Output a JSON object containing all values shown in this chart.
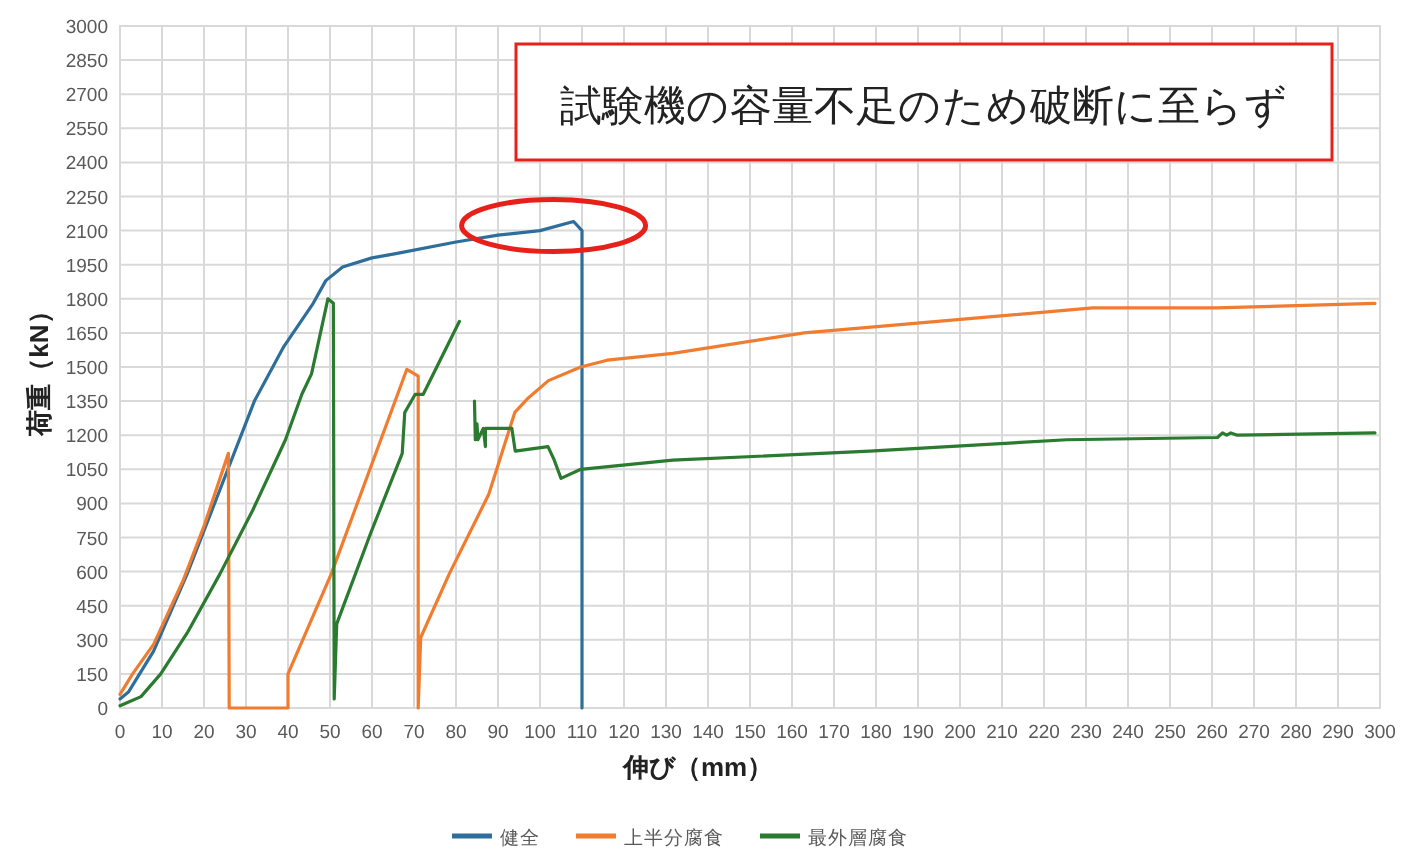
{
  "chart_data": {
    "type": "line",
    "xlabel": "伸び（mm）",
    "ylabel": "荷重（kN）",
    "xlim": [
      0,
      300
    ],
    "xticks": [
      0,
      10,
      20,
      30,
      40,
      50,
      60,
      70,
      80,
      90,
      100,
      110,
      120,
      130,
      140,
      150,
      160,
      170,
      180,
      190,
      200,
      210,
      220,
      230,
      240,
      250,
      260,
      270,
      280,
      290,
      300
    ],
    "ylim": [
      0,
      3000
    ],
    "yticks": [
      0,
      150,
      300,
      450,
      600,
      750,
      900,
      1050,
      1200,
      1350,
      1500,
      1650,
      1800,
      1950,
      2100,
      2250,
      2400,
      2550,
      2700,
      2850,
      3000
    ],
    "grid": true,
    "legend": "bottom",
    "marker": "none",
    "line_style": "solid",
    "annotations": [
      "試験機の容量不足のため破断に至らず"
    ],
    "series": [
      {
        "name": "健全",
        "color": "#2e6e9a",
        "x": [
          0,
          2,
          8,
          16,
          24,
          32,
          39,
          46,
          49,
          53,
          60,
          66,
          80,
          90,
          100,
          108,
          110,
          110
        ],
        "values": [
          40,
          70,
          250,
          590,
          970,
          1350,
          1590,
          1780,
          1880,
          1940,
          1980,
          2000,
          2050,
          2080,
          2100,
          2140,
          2100,
          0
        ]
      },
      {
        "name": "上半分腐食",
        "color": "#f07c30",
        "x": [
          0,
          3,
          8,
          15,
          20,
          25.8,
          26,
          40,
          40,
          50.3,
          68.3,
          71,
          71,
          71.6,
          78.4,
          87.8,
          94,
          97,
          102,
          109.7,
          116,
          131.6,
          162.9,
          187.8,
          231.6,
          261,
          298.8
        ],
        "values": [
          60,
          150,
          280,
          560,
          800,
          1120,
          0,
          0,
          150,
          590,
          1490,
          1460,
          0,
          310,
          590,
          940,
          1300,
          1360,
          1440,
          1500,
          1530,
          1560,
          1650,
          1690,
          1760,
          1760,
          1780
        ]
      },
      {
        "name": "最外層腐食",
        "color": "#2a7a2f",
        "x": [
          0,
          5,
          9.7,
          16,
          23.8,
          31.6,
          39.4,
          43.3,
          45.6,
          49.5,
          50.8,
          51,
          51.6,
          59.7,
          67.2,
          67.8,
          70.3,
          72.2,
          80.8,
          null,
          84.4,
          84.6,
          85,
          85.2,
          86.5,
          87,
          87,
          93.3,
          94.1,
          101.9,
          103.4,
          105,
          109.7,
          131.6,
          178.5,
          225.4,
          261.3,
          262.5,
          263.5,
          264.5,
          266,
          298.8
        ],
        "values": [
          10,
          50,
          150,
          330,
          590,
          870,
          1180,
          1380,
          1470,
          1800,
          1780,
          40,
          370,
          770,
          1120,
          1300,
          1380,
          1380,
          1700,
          null,
          1350,
          1180,
          1250,
          1180,
          1230,
          1150,
          1230,
          1230,
          1130,
          1150,
          1090,
          1010,
          1050,
          1090,
          1130,
          1180,
          1190,
          1210,
          1200,
          1210,
          1200,
          1210
        ]
      }
    ]
  }
}
